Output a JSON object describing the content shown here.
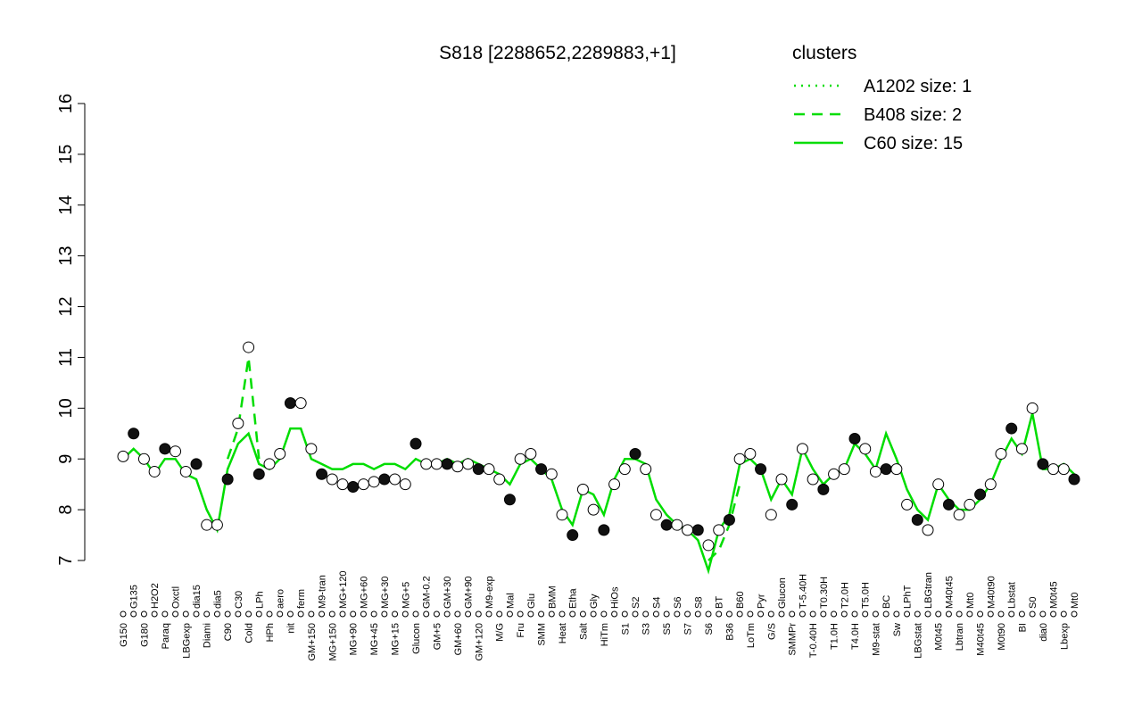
{
  "chart_data": {
    "type": "line",
    "title": "S818 [2288652,2289883,+1]",
    "ylim": [
      7,
      16
    ],
    "yticks": [
      7,
      8,
      9,
      10,
      11,
      12,
      13,
      14,
      15,
      16
    ],
    "legend_title": "clusters",
    "legend_color": "#00dd00",
    "categories": [
      "G150",
      "G135",
      "G180",
      "H2O2",
      "Paraq",
      "Oxctl",
      "LBGexp",
      "dia15",
      "Diami",
      "dia5",
      "C90",
      "C30",
      "Cold",
      "LPh",
      "HPh",
      "aero",
      "nit",
      "ferm",
      "GM+150",
      "M9-tran",
      "MG+150",
      "MG+120",
      "MG+90",
      "MG+60",
      "MG+45",
      "MG+30",
      "MG+15",
      "MG+5",
      "Glucon",
      "GM-0.2",
      "GM+5",
      "GM+30",
      "GM+60",
      "GM+90",
      "GM+120",
      "M9-exp",
      "M/G",
      "Mal",
      "Fru",
      "Glu",
      "SMM",
      "BMM",
      "Heat",
      "Etha",
      "Salt",
      "Gly",
      "HiTm",
      "HiOs",
      "S1",
      "S2",
      "S3",
      "S4",
      "S5",
      "S6",
      "S7",
      "S8",
      "S6",
      "BT",
      "B36",
      "B60",
      "LoTm",
      "Pyr",
      "G/S",
      "Glucon",
      "SMMPr",
      "T-5.40H",
      "T-0.40H",
      "T0.30H",
      "T1.0H",
      "T2.0H",
      "T4.0H",
      "T5.0H",
      "M9-stat",
      "BC",
      "Sw",
      "LPhT",
      "LBGstat",
      "LBGtran",
      "M0t45",
      "M40t45",
      "Lbtran",
      "Mt0",
      "M40t45",
      "M40t90",
      "M0t90",
      "Lbstat",
      "BI",
      "S0",
      "dia0",
      "M0t45",
      "Lbexp",
      "Mt0"
    ],
    "points": [
      9.05,
      9.5,
      9.0,
      8.75,
      9.2,
      9.15,
      8.75,
      8.9,
      7.7,
      7.7,
      8.6,
      9.7,
      11.2,
      8.7,
      8.9,
      9.1,
      10.1,
      10.1,
      9.2,
      8.7,
      8.6,
      8.5,
      8.45,
      8.5,
      8.55,
      8.6,
      8.6,
      8.5,
      9.3,
      8.9,
      8.9,
      8.9,
      8.85,
      8.9,
      8.8,
      8.8,
      8.6,
      8.2,
      9.0,
      9.1,
      8.8,
      8.7,
      7.9,
      7.5,
      8.4,
      8.0,
      7.6,
      8.5,
      8.8,
      9.1,
      8.8,
      7.9,
      7.7,
      7.7,
      7.6,
      7.6,
      7.3,
      7.6,
      7.8,
      9.0,
      9.1,
      8.8,
      7.9,
      8.6,
      8.1,
      9.2,
      8.6,
      8.4,
      8.7,
      8.8,
      9.4,
      9.2,
      8.75,
      8.8,
      8.8,
      8.1,
      7.8,
      7.6,
      8.5,
      8.1,
      7.9,
      8.1,
      8.3,
      8.5,
      9.1,
      9.6,
      9.2,
      10.0,
      8.9,
      8.8,
      8.8,
      8.6
    ],
    "series": [
      {
        "name": "A1202 size: 1",
        "color": "#00dd00",
        "dash": "2,6",
        "values": [
          null,
          null,
          null,
          null,
          null,
          null,
          null,
          null,
          null,
          null,
          null,
          null,
          null,
          null,
          null,
          null,
          null,
          null,
          null,
          null,
          null,
          null,
          null,
          null,
          null,
          null,
          null,
          null,
          null,
          null,
          null,
          null,
          null,
          null,
          null,
          null,
          null,
          null,
          null,
          null,
          null,
          null,
          null,
          null,
          null,
          null,
          null,
          null,
          null,
          null,
          null,
          null,
          null,
          null,
          null,
          null,
          null,
          null,
          null,
          null,
          null,
          null,
          null,
          null,
          null,
          null,
          null,
          null,
          null,
          null,
          null,
          null,
          null,
          null,
          null,
          null,
          null,
          null,
          null,
          null,
          null,
          null,
          null,
          null,
          null,
          null,
          null,
          null,
          null,
          null,
          null,
          null
        ]
      },
      {
        "name": "B408 size: 2",
        "color": "#00dd00",
        "dash": "12,8",
        "values": [
          null,
          null,
          null,
          null,
          null,
          null,
          null,
          null,
          null,
          null,
          9.0,
          9.6,
          11.0,
          9.0,
          null,
          null,
          null,
          null,
          null,
          null,
          null,
          null,
          null,
          null,
          null,
          null,
          null,
          null,
          null,
          null,
          null,
          null,
          null,
          null,
          null,
          null,
          null,
          null,
          null,
          null,
          null,
          null,
          null,
          null,
          null,
          null,
          null,
          null,
          null,
          null,
          null,
          null,
          null,
          null,
          null,
          null,
          7.0,
          7.2,
          7.7,
          8.5,
          null,
          null,
          null,
          null,
          null,
          null,
          null,
          null,
          null,
          null,
          null,
          null,
          null,
          null,
          null,
          null,
          null,
          null,
          null,
          null,
          null,
          null,
          null,
          null,
          null,
          null,
          null,
          null,
          null,
          null,
          null,
          null
        ]
      },
      {
        "name": "C60 size: 15",
        "color": "#00dd00",
        "dash": "",
        "values": [
          9.0,
          9.2,
          9.0,
          8.7,
          9.0,
          9.0,
          8.7,
          8.6,
          8.0,
          7.6,
          8.8,
          9.3,
          9.5,
          8.9,
          8.8,
          9.0,
          9.6,
          9.6,
          9.0,
          8.9,
          8.8,
          8.8,
          8.9,
          8.9,
          8.8,
          8.9,
          8.9,
          8.8,
          9.0,
          8.9,
          8.9,
          9.0,
          8.9,
          9.0,
          8.9,
          8.8,
          8.7,
          8.5,
          8.9,
          9.0,
          8.8,
          8.6,
          8.0,
          7.7,
          8.4,
          8.3,
          7.9,
          8.6,
          9.0,
          9.0,
          8.9,
          8.2,
          7.9,
          7.7,
          7.6,
          7.4,
          6.8,
          7.6,
          7.9,
          8.9,
          9.0,
          8.8,
          8.2,
          8.6,
          8.3,
          9.2,
          8.8,
          8.5,
          8.7,
          8.8,
          9.3,
          9.1,
          8.8,
          9.5,
          9.0,
          8.4,
          8.0,
          7.8,
          8.5,
          8.2,
          8.0,
          8.0,
          8.2,
          8.5,
          9.0,
          9.4,
          9.1,
          9.9,
          8.8,
          8.8,
          8.9,
          8.7
        ]
      }
    ]
  }
}
